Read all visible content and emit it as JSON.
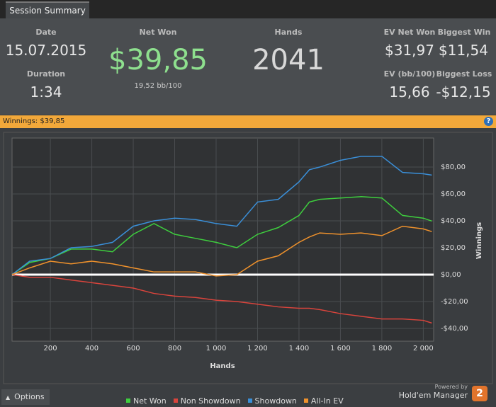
{
  "tab": "Session Summary",
  "stats": {
    "date": {
      "label": "Date",
      "value": "15.07.2015"
    },
    "duration": {
      "label": "Duration",
      "value": "1:34"
    },
    "net_won": {
      "label": "Net Won",
      "value": "$39,85",
      "sub": "19,52 bb/100"
    },
    "hands": {
      "label": "Hands",
      "value": "2041"
    },
    "ev_net_won": {
      "label": "EV Net Won",
      "value": "$31,97"
    },
    "ev_bb": {
      "label": "EV (bb/100)",
      "value": "15,66"
    },
    "biggest_win": {
      "label": "Biggest Win",
      "value": "$11,54"
    },
    "biggest_loss": {
      "label": "Biggest Loss",
      "value": "-$12,15"
    }
  },
  "banner": "Winnings: $39,85",
  "help": "?",
  "chart_data": {
    "type": "line",
    "x_label": "Hands",
    "y_label": "Winnings",
    "x": [
      15,
      100,
      200,
      300,
      400,
      500,
      600,
      700,
      800,
      900,
      1000,
      1100,
      1200,
      1300,
      1400,
      1450,
      1500,
      1600,
      1700,
      1800,
      1900,
      2000,
      2041
    ],
    "xlim": [
      15,
      2050
    ],
    "xticks": [
      200,
      400,
      600,
      800,
      {
        "value": 1000,
        "label": "1 000"
      },
      {
        "value": 1200,
        "label": "1 200"
      },
      {
        "value": 1400,
        "label": "1 400"
      },
      {
        "value": 1600,
        "label": "1 600"
      },
      {
        "value": 1800,
        "label": "1 800"
      },
      {
        "value": 2000,
        "label": "2 000"
      }
    ],
    "ylim": [
      -49.5,
      101.6
    ],
    "yticks": [
      {
        "value": -40,
        "label": "-$40,00"
      },
      {
        "value": -20,
        "label": "-$20,00"
      },
      {
        "value": 0,
        "label": "$0,00"
      },
      {
        "value": 20,
        "label": "$20,00"
      },
      {
        "value": 40,
        "label": "$40,00"
      },
      {
        "value": 60,
        "label": "$60,00"
      },
      {
        "value": 80,
        "label": "$80,00"
      }
    ],
    "grid": true,
    "series": [
      {
        "name": "Net Won",
        "color": "#3ecf3e",
        "values": [
          0,
          9,
          12,
          19,
          19,
          17,
          30,
          38,
          30,
          27,
          24,
          20,
          30,
          35,
          44,
          54,
          56,
          57,
          58,
          57,
          44,
          42,
          39.85
        ]
      },
      {
        "name": "Non Showdown",
        "color": "#d9443c",
        "values": [
          0,
          -2,
          -2,
          -4,
          -6,
          -8,
          -10,
          -14,
          -16,
          -17,
          -19,
          -20,
          -22,
          -24,
          -25,
          -25,
          -26,
          -29,
          -31,
          -33,
          -33,
          -34,
          -36
        ]
      },
      {
        "name": "Showdown",
        "color": "#3a8fd8",
        "values": [
          0,
          10,
          12,
          20,
          21,
          24,
          36,
          40,
          42,
          41,
          38,
          36,
          54,
          56,
          69,
          78,
          80,
          85,
          88,
          88,
          76,
          75,
          74
        ]
      },
      {
        "name": "All-In EV",
        "color": "#f0922c",
        "values": [
          0,
          5,
          10,
          8,
          10,
          8,
          5,
          2,
          2,
          2,
          -1,
          0,
          10,
          14,
          24,
          28,
          31,
          30,
          31,
          29,
          36,
          34,
          32
        ]
      }
    ]
  },
  "footer": {
    "options": "Options",
    "powered_by": "Powered by",
    "brand": "Hold'em Manager",
    "logo": "2"
  }
}
